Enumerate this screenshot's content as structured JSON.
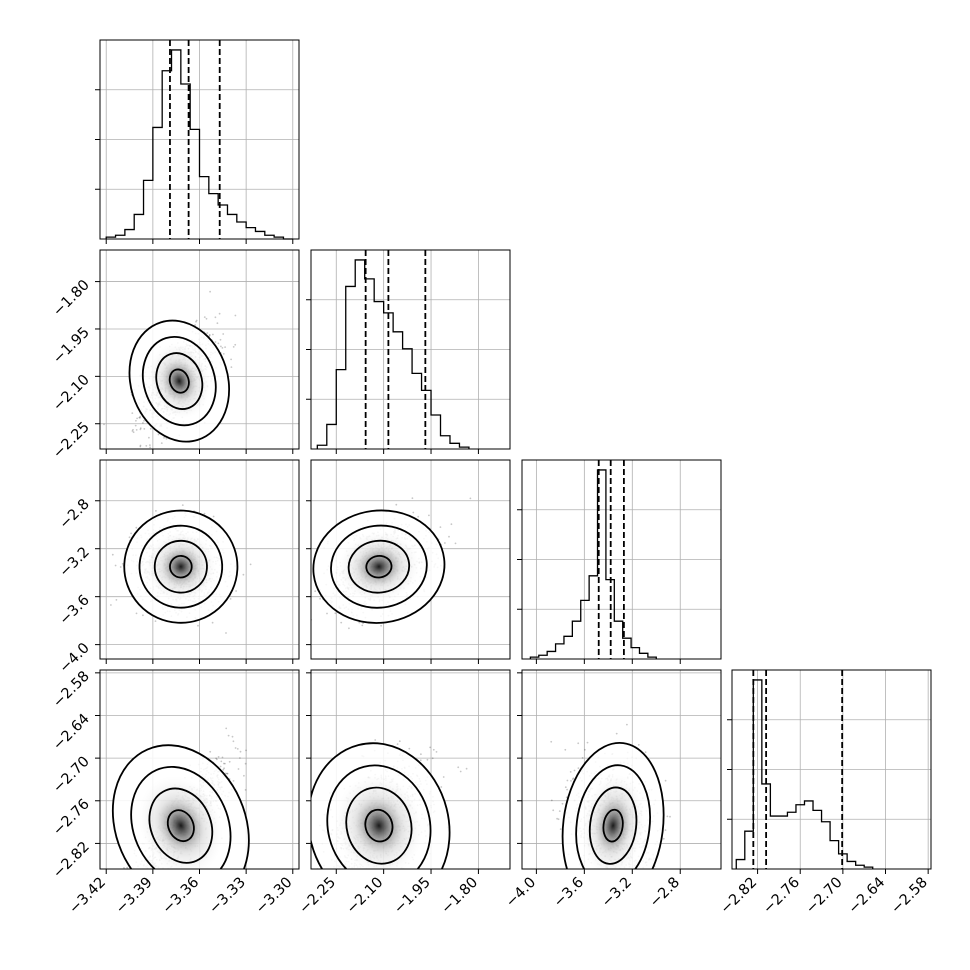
{
  "chart_data": {
    "type": "corner",
    "parameters": [
      {
        "range": [
          -3.424,
          -3.296
        ],
        "ticks": [
          "−3.42",
          "−3.39",
          "−3.36",
          "−3.33",
          "−3.30"
        ],
        "tick_values": [
          -3.42,
          -3.39,
          -3.36,
          -3.33,
          -3.3
        ],
        "quantiles": [
          -3.379,
          -3.367,
          -3.347
        ],
        "hist": {
          "edges_start": -3.42,
          "bin_width": 0.006,
          "counts": [
            0.01,
            0.02,
            0.05,
            0.13,
            0.31,
            0.59,
            0.89,
            1.0,
            0.82,
            0.58,
            0.33,
            0.24,
            0.18,
            0.13,
            0.09,
            0.06,
            0.04,
            0.02,
            0.01,
            0.0
          ]
        }
      },
      {
        "range": [
          -2.33,
          -1.7
        ],
        "ticks": [
          "−2.25",
          "−2.10",
          "−1.95",
          "−1.80"
        ],
        "tick_values": [
          -2.25,
          -2.1,
          -1.95,
          -1.8
        ],
        "quantiles": [
          -2.157,
          -2.085,
          -1.968
        ],
        "hist": {
          "edges_start": -2.31,
          "bin_width": 0.03,
          "counts": [
            0.02,
            0.13,
            0.42,
            0.86,
            1.0,
            0.9,
            0.78,
            0.72,
            0.62,
            0.53,
            0.4,
            0.31,
            0.18,
            0.07,
            0.03,
            0.01
          ]
        }
      },
      {
        "range": [
          -4.12,
          -2.46
        ],
        "ticks": [
          "−4.0",
          "−3.6",
          "−3.2",
          "−2.8"
        ],
        "tick_values": [
          -4.0,
          -3.6,
          -3.2,
          -2.8
        ],
        "quantiles": [
          -3.48,
          -3.38,
          -3.27
        ],
        "hist": {
          "edges_start": -4.05,
          "bin_width": 0.07,
          "counts": [
            0.01,
            0.02,
            0.04,
            0.08,
            0.12,
            0.2,
            0.31,
            0.44,
            1.0,
            0.42,
            0.2,
            0.11,
            0.06,
            0.03,
            0.01
          ]
        }
      },
      {
        "range": [
          -2.856,
          -2.576
        ],
        "ticks": [
          "−2.82",
          "−2.76",
          "−2.70",
          "−2.64",
          "−2.58"
        ],
        "tick_values": [
          -2.82,
          -2.76,
          -2.7,
          -2.64,
          -2.58
        ],
        "quantiles": [
          -2.826,
          -2.808,
          -2.701
        ],
        "hist": {
          "edges_start": -2.85,
          "bin_width": 0.012,
          "counts": [
            0.05,
            0.2,
            1.0,
            0.45,
            0.28,
            0.28,
            0.3,
            0.34,
            0.36,
            0.31,
            0.25,
            0.15,
            0.08,
            0.04,
            0.02,
            0.01
          ]
        }
      }
    ],
    "pairs": [
      {
        "row": 1,
        "col": 0,
        "peak": [
          -3.373,
          -2.115
        ],
        "sigma": [
          0.012,
          0.075
        ],
        "rho": 0.55
      },
      {
        "row": 2,
        "col": 0,
        "peak": [
          -3.372,
          -3.35
        ],
        "sigma": [
          0.014,
          0.18
        ],
        "rho": -0.1
      },
      {
        "row": 2,
        "col": 1,
        "peak": [
          -2.115,
          -3.35
        ],
        "sigma": [
          0.08,
          0.18
        ],
        "rho": 0.3
      },
      {
        "row": 3,
        "col": 0,
        "peak": [
          -3.372,
          -2.795
        ],
        "sigma": [
          0.016,
          0.045
        ],
        "rho": 0.85
      },
      {
        "row": 3,
        "col": 1,
        "peak": [
          -2.115,
          -2.795
        ],
        "sigma": [
          0.085,
          0.045
        ],
        "rho": 0.45
      },
      {
        "row": 3,
        "col": 2,
        "peak": [
          -3.36,
          -2.795
        ],
        "sigma": [
          0.16,
          0.045
        ],
        "rho": -0.15
      }
    ],
    "diag_y_ticks": [
      0.25,
      0.5,
      0.75
    ]
  }
}
